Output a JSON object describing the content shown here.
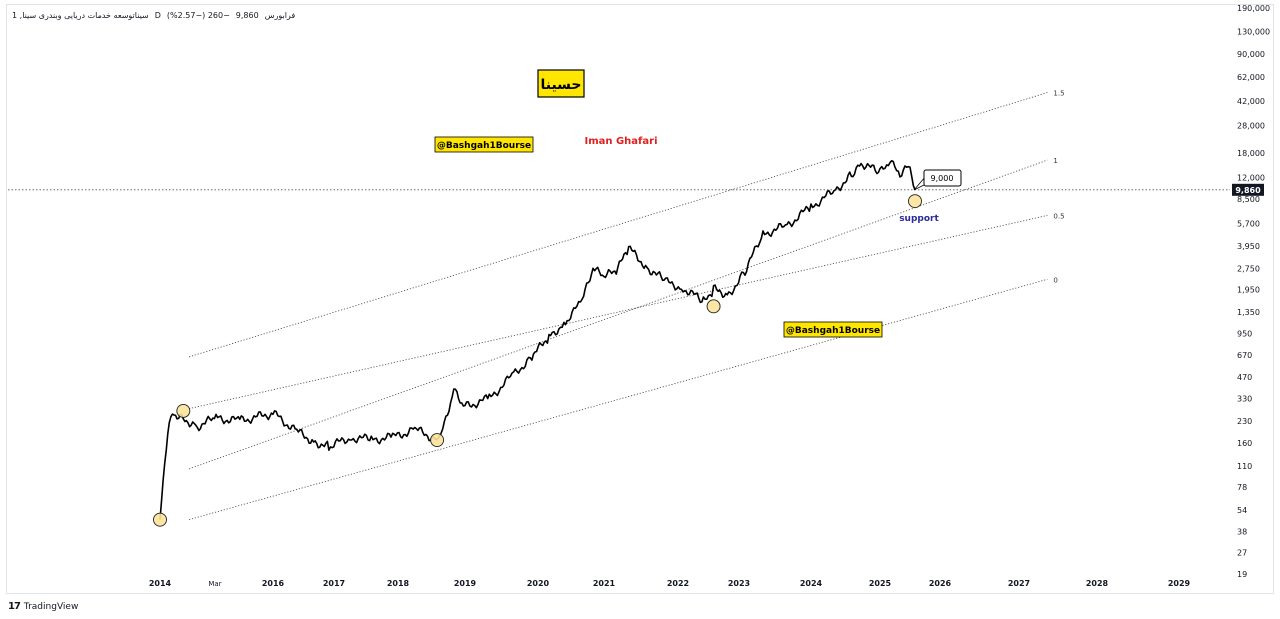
{
  "header": {
    "symbol_text": "1 ,سیناتوسعه خدمات دریایی وبندری سینا",
    "period": "D",
    "prefix": "فرابورس",
    "last": "9,860",
    "change": "−260 (−2.57%)"
  },
  "branding": {
    "tradingview": "TradingView",
    "logo_mark": "17"
  },
  "chart_data": {
    "type": "line",
    "scale": "log",
    "y_ticks": [
      "190,000",
      "130,000",
      "90,000",
      "62,000",
      "42,000",
      "28,000",
      "18,000",
      "12,000",
      "8,500",
      "5,700",
      "3,950",
      "2,750",
      "1,950",
      "1,350",
      "950",
      "670",
      "470",
      "330",
      "230",
      "160",
      "110",
      "78",
      "54",
      "38",
      "27",
      "19"
    ],
    "x_ticks": [
      "2014",
      "Mar",
      "2016",
      "2017",
      "2018",
      "2019",
      "2020",
      "2021",
      "2022",
      "2023",
      "2024",
      "2025",
      "2026",
      "2027",
      "2028",
      "2029"
    ],
    "last_price_label": "9,860",
    "series": [
      {
        "x": [
          "2014-01",
          "2014-02",
          "2014-03",
          "2014-04",
          "2014-06",
          "2014-09",
          "2015-01",
          "2015-06",
          "2016-01",
          "2016-06",
          "2016-09",
          "2016-12",
          "2017-04",
          "2017-08",
          "2017-12",
          "2018-04",
          "2018-08",
          "2018-09",
          "2018-11",
          "2019-01",
          "2019-05",
          "2019-09",
          "2019-12",
          "2020-03",
          "2020-06",
          "2020-09",
          "2020-11",
          "2021-01",
          "2021-03",
          "2021-05",
          "2021-08",
          "2021-11",
          "2022-02",
          "2022-06",
          "2022-08",
          "2022-11",
          "2023-02",
          "2023-05",
          "2023-09",
          "2024-01",
          "2024-05",
          "2024-08",
          "2024-10",
          "2025-01",
          "2025-03",
          "2025-05",
          "2025-07",
          "2025-08"
        ],
        "y": [
          46,
          120,
          220,
          260,
          240,
          210,
          240,
          230,
          260,
          190,
          165,
          150,
          175,
          170,
          175,
          200,
          170,
          200,
          380,
          290,
          330,
          490,
          650,
          900,
          1150,
          1600,
          2700,
          2400,
          2600,
          3800,
          2800,
          2200,
          2000,
          1600,
          1950,
          1800,
          2600,
          4800,
          5500,
          7500,
          9600,
          12500,
          15000,
          13000,
          15500,
          12500,
          14500,
          9860
        ]
      }
    ],
    "channel_lines": [
      {
        "label": "1.5",
        "x_start": "2014-04",
        "y_start": 650,
        "x_end": "2026-12",
        "y_end": 48000
      },
      {
        "label": "1",
        "x_start": "2014-04",
        "y_start": 105,
        "x_end": "2026-12",
        "y_end": 16000
      },
      {
        "label": "0.5",
        "x_start": "2014-04",
        "y_start": 280,
        "x_end": "2026-12",
        "y_end": 6500
      },
      {
        "label": "0",
        "x_start": "2014-04",
        "y_start": 46,
        "x_end": "2026-12",
        "y_end": 2300
      }
    ],
    "horizontal_line": 9860,
    "markers": [
      "2014-01",
      "2014-06",
      "2018-08",
      "2022-08",
      "2025-08"
    ],
    "annotations": [
      {
        "text": "حسینا",
        "kind": "title-badge"
      },
      {
        "text": "@Bashgah1Bourse",
        "kind": "badge"
      },
      {
        "text": "Iman Ghafari",
        "kind": "red-text"
      },
      {
        "text": "@Bashgah1Bourse",
        "kind": "badge"
      },
      {
        "text": "9,000",
        "kind": "callout"
      },
      {
        "text": "support",
        "kind": "blue-text"
      }
    ],
    "colors": {
      "price": "#000000",
      "badge": "#ffe600",
      "red": "#e02020",
      "blue": "#2a2a9a",
      "marker": "#fbe39a"
    }
  }
}
